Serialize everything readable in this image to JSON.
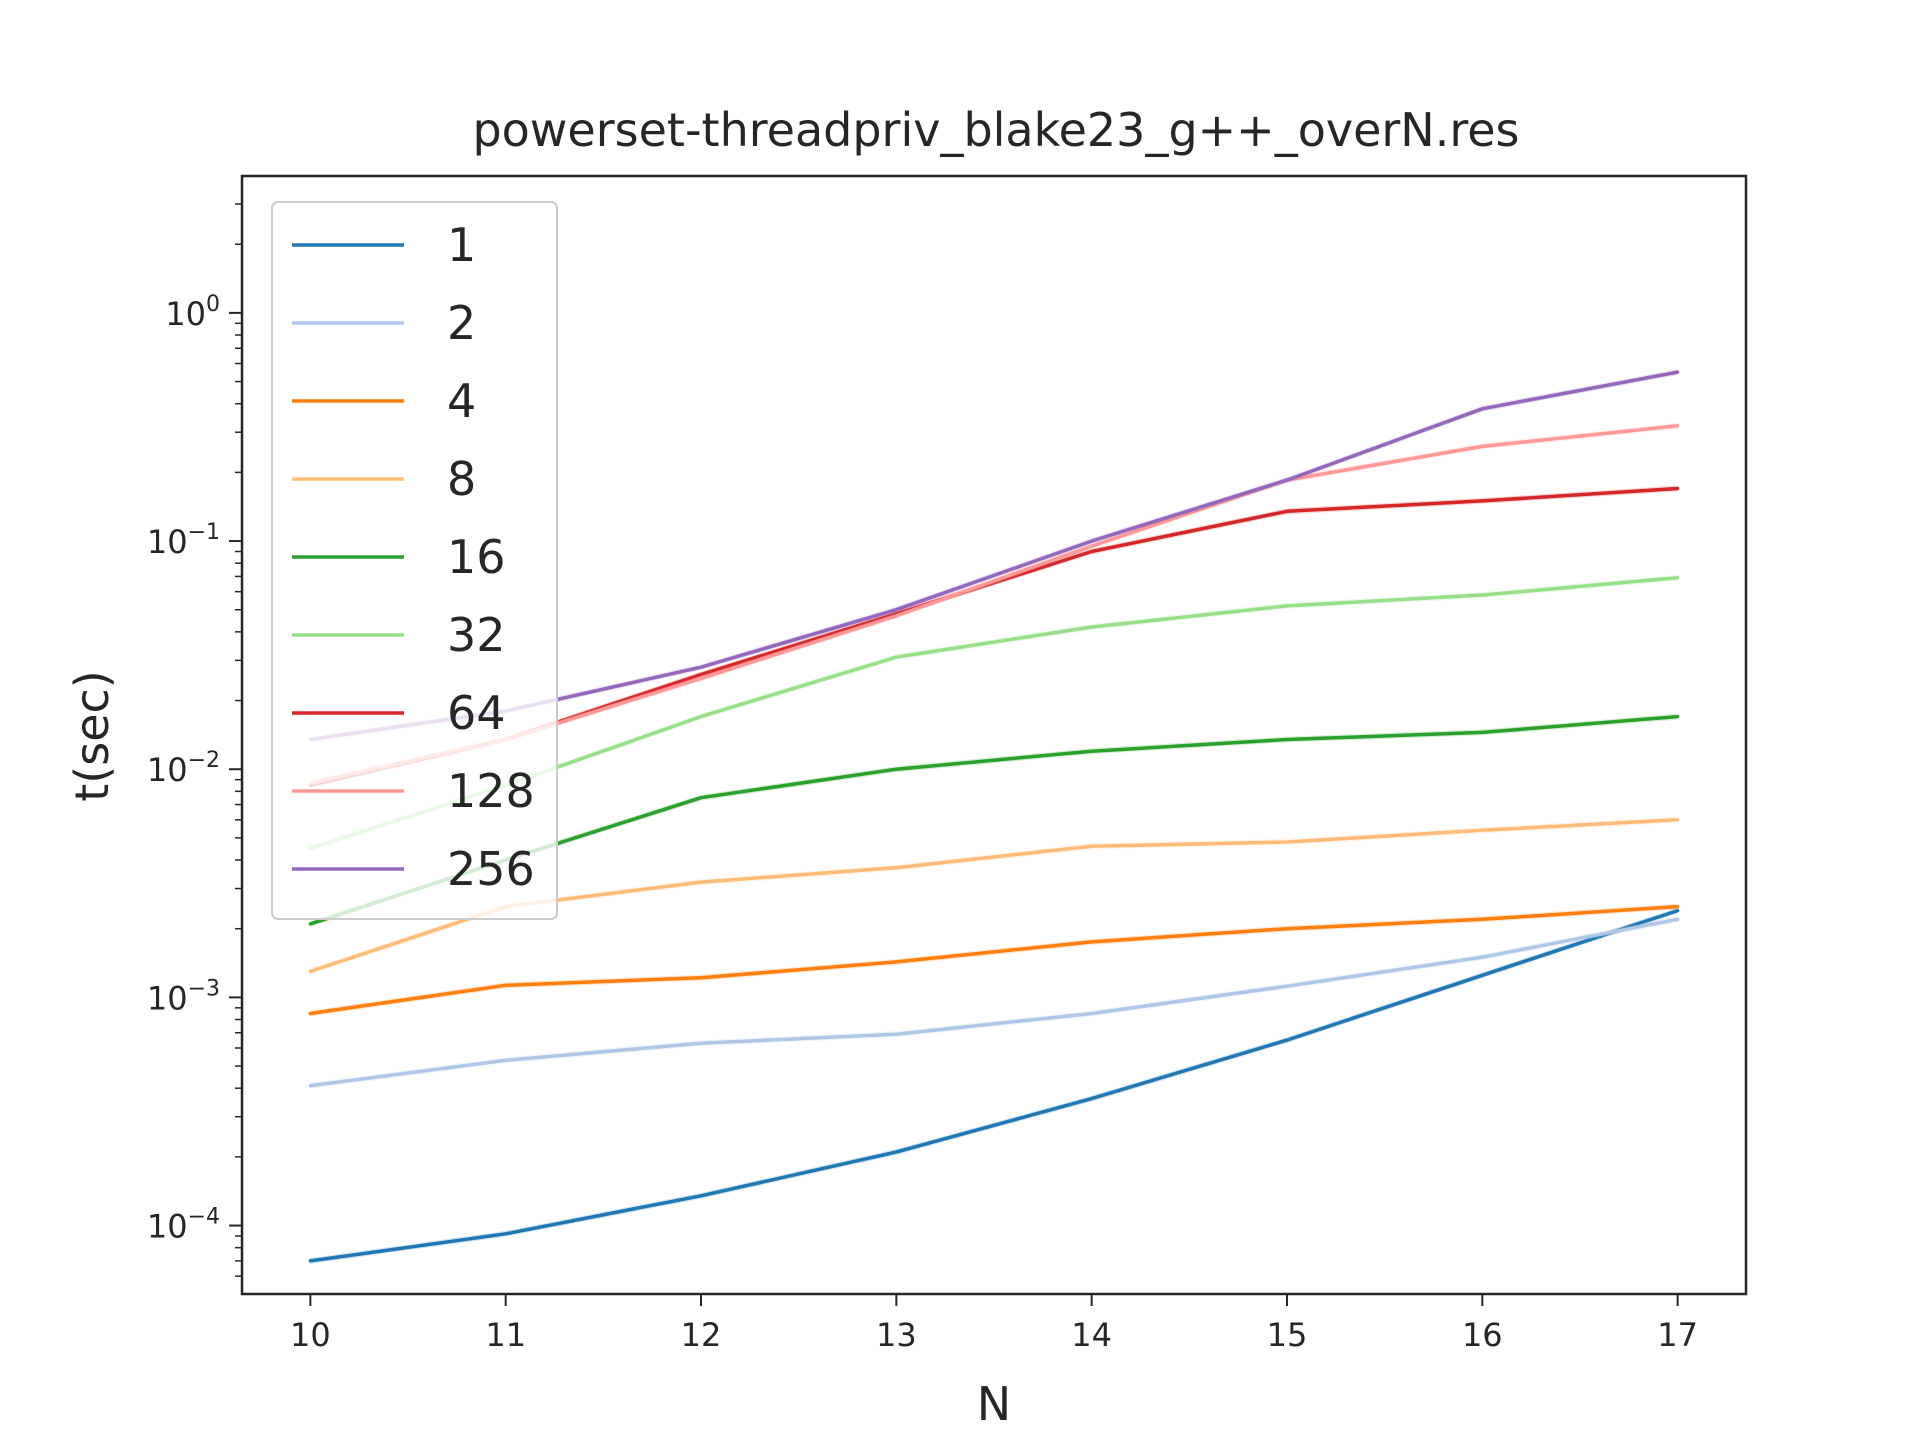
{
  "chart_data": {
    "type": "line",
    "title": "powerset-threadpriv_blake23_g++_overN.res",
    "xlabel": "N",
    "ylabel": "t(sec)",
    "yscale": "log",
    "xlim": [
      9.65,
      17.35
    ],
    "ylim_log10": [
      -4.3,
      0.6
    ],
    "x": [
      10,
      11,
      12,
      13,
      14,
      15,
      16,
      17
    ],
    "x_tick_labels": [
      "10",
      "11",
      "12",
      "13",
      "14",
      "15",
      "16",
      "17"
    ],
    "y_ticks": [
      {
        "value": 0.0001,
        "base": "10",
        "exp": "−4"
      },
      {
        "value": 0.001,
        "base": "10",
        "exp": "−3"
      },
      {
        "value": 0.01,
        "base": "10",
        "exp": "−2"
      },
      {
        "value": 0.1,
        "base": "10",
        "exp": "−1"
      },
      {
        "value": 1,
        "base": "10",
        "exp": "0"
      }
    ],
    "legend_position": "upper-left",
    "series": [
      {
        "name": "1",
        "color": "#1f77b4",
        "values": [
          7e-05,
          9.2e-05,
          0.000135,
          0.00021,
          0.00036,
          0.00065,
          0.00125,
          0.0024
        ]
      },
      {
        "name": "2",
        "color": "#aec7e8",
        "values": [
          0.00041,
          0.00053,
          0.00063,
          0.00069,
          0.00085,
          0.00112,
          0.0015,
          0.0022
        ]
      },
      {
        "name": "4",
        "color": "#ff7f0e",
        "values": [
          0.00085,
          0.00113,
          0.00122,
          0.00143,
          0.00175,
          0.002,
          0.0022,
          0.0025
        ]
      },
      {
        "name": "8",
        "color": "#ffbb78",
        "values": [
          0.0013,
          0.0025,
          0.0032,
          0.0037,
          0.0046,
          0.0048,
          0.0054,
          0.006
        ]
      },
      {
        "name": "16",
        "color": "#2ca02c",
        "values": [
          0.0021,
          0.004,
          0.0075,
          0.01,
          0.012,
          0.0135,
          0.0145,
          0.017
        ]
      },
      {
        "name": "32",
        "color": "#98df8a",
        "values": [
          0.0045,
          0.0085,
          0.017,
          0.031,
          0.042,
          0.052,
          0.058,
          0.069
        ]
      },
      {
        "name": "64",
        "color": "#d62728",
        "values": [
          0.0085,
          0.0135,
          0.026,
          0.048,
          0.09,
          0.135,
          0.15,
          0.17
        ]
      },
      {
        "name": "128",
        "color": "#ff9896",
        "values": [
          0.0087,
          0.0135,
          0.025,
          0.047,
          0.095,
          0.185,
          0.26,
          0.32
        ]
      },
      {
        "name": "256",
        "color": "#9467bd",
        "values": [
          0.0135,
          0.018,
          0.028,
          0.05,
          0.1,
          0.185,
          0.38,
          0.55
        ]
      }
    ]
  }
}
